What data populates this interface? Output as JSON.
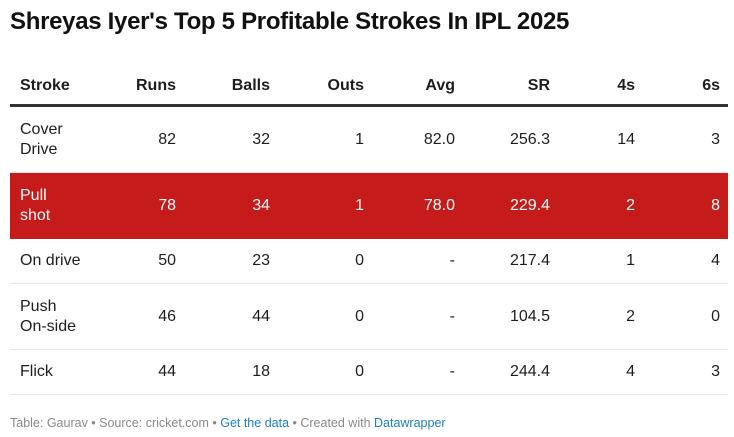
{
  "title": "Shreyas Iyer's Top 5 Profitable Strokes In IPL 2025",
  "colors": {
    "highlight": "#c51b1b",
    "link": "#1a7fc9"
  },
  "chart_data": {
    "type": "table",
    "title": "Shreyas Iyer's Top 5 Profitable Strokes In IPL 2025",
    "columns": [
      "Stroke",
      "Runs",
      "Balls",
      "Outs",
      "Avg",
      "SR",
      "4s",
      "6s"
    ],
    "rows": [
      {
        "stroke": [
          "Cover",
          "Drive"
        ],
        "runs": "82",
        "balls": "32",
        "outs": "1",
        "avg": "82.0",
        "sr": "256.3",
        "fours": "14",
        "sixes": "3",
        "highlight": false
      },
      {
        "stroke": [
          "Pull",
          "shot"
        ],
        "runs": "78",
        "balls": "34",
        "outs": "1",
        "avg": "78.0",
        "sr": "229.4",
        "fours": "2",
        "sixes": "8",
        "highlight": true
      },
      {
        "stroke": [
          "On drive"
        ],
        "runs": "50",
        "balls": "23",
        "outs": "0",
        "avg": "-",
        "sr": "217.4",
        "fours": "1",
        "sixes": "4",
        "highlight": false
      },
      {
        "stroke": [
          "Push",
          "On-side"
        ],
        "runs": "46",
        "balls": "44",
        "outs": "0",
        "avg": "-",
        "sr": "104.5",
        "fours": "2",
        "sixes": "0",
        "highlight": false
      },
      {
        "stroke": [
          "Flick"
        ],
        "runs": "44",
        "balls": "18",
        "outs": "0",
        "avg": "-",
        "sr": "244.4",
        "fours": "4",
        "sixes": "3",
        "highlight": false
      }
    ]
  },
  "footer": {
    "prefix": "Table: Gaurav • Source: cricket.com • ",
    "get_data": "Get the data",
    "middle": " • Created with ",
    "datawrapper": "Datawrapper"
  }
}
